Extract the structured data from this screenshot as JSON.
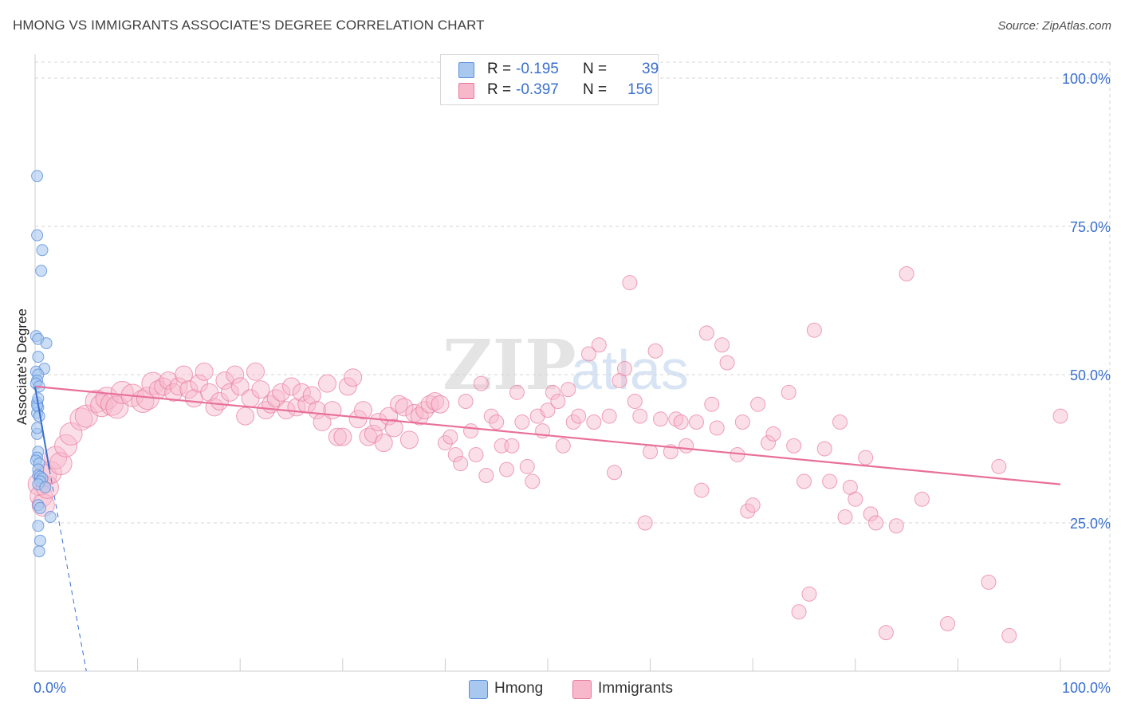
{
  "title": "HMONG VS IMMIGRANTS ASSOCIATE'S DEGREE CORRELATION CHART",
  "source": "Source: ZipAtlas.com",
  "watermark": {
    "zip": "ZIP",
    "atlas": "atlas"
  },
  "legend": {
    "r_label": "R =",
    "n_label": "N =",
    "hmong": {
      "r": "-0.195",
      "n": "39"
    },
    "immigrants": {
      "r": "-0.397",
      "n": "156"
    }
  },
  "bottom_legend": {
    "hmong": "Hmong",
    "immigrants": "Immigrants"
  },
  "colors": {
    "hmong_fill": "#a8c8f0",
    "hmong_stroke": "#5b8fd8",
    "hmong_line": "#3a6fce",
    "imm_fill": "#f7b8cb",
    "imm_stroke": "#e8799c",
    "imm_line": "#e8709a",
    "axis_label": "#3a6fce",
    "grid": "#d5d5d5"
  },
  "chart_data": {
    "type": "scatter",
    "title": "HMONG VS IMMIGRANTS ASSOCIATE'S DEGREE CORRELATION CHART",
    "xlabel": "",
    "ylabel": "Associate's Degree",
    "xlim": [
      0,
      100
    ],
    "ylim": [
      0,
      100
    ],
    "x_tick_labels": [
      "0.0%",
      "100.0%"
    ],
    "y_tick_labels": [
      {
        "value": 25,
        "label": "25.0%"
      },
      {
        "value": 50,
        "label": "50.0%"
      },
      {
        "value": 75,
        "label": "75.0%"
      },
      {
        "value": 100,
        "label": "100.0%"
      }
    ],
    "grid": true,
    "series": [
      {
        "name": "Hmong",
        "points": [
          [
            0.2,
            83.5
          ],
          [
            0.2,
            73.5
          ],
          [
            0.7,
            71
          ],
          [
            0.6,
            67.5
          ],
          [
            0.1,
            56.5
          ],
          [
            0.3,
            56
          ],
          [
            1.1,
            55.3
          ],
          [
            0.3,
            53
          ],
          [
            0.9,
            51
          ],
          [
            0.1,
            50.5
          ],
          [
            0.3,
            50
          ],
          [
            0.2,
            49
          ],
          [
            0.1,
            48.5
          ],
          [
            0.4,
            48
          ],
          [
            0.2,
            45.3
          ],
          [
            0.3,
            44.5
          ],
          [
            0.2,
            43.5
          ],
          [
            0.4,
            43
          ],
          [
            0.2,
            40
          ],
          [
            0.3,
            37
          ],
          [
            0.2,
            36
          ],
          [
            0.1,
            35.5
          ],
          [
            0.4,
            35
          ],
          [
            0.3,
            34
          ],
          [
            0.3,
            33
          ],
          [
            0.5,
            32.8
          ],
          [
            0.7,
            32.5
          ],
          [
            0.5,
            32
          ],
          [
            0.3,
            31.5
          ],
          [
            1.0,
            31
          ],
          [
            0.3,
            28
          ],
          [
            0.5,
            27.5
          ],
          [
            1.5,
            26
          ],
          [
            0.3,
            24.5
          ],
          [
            0.5,
            22
          ],
          [
            0.4,
            20.2
          ],
          [
            0.2,
            44.8
          ],
          [
            0.3,
            46
          ],
          [
            0.2,
            41
          ]
        ]
      },
      {
        "name": "Immigrants",
        "points": [
          [
            0.4,
            31.5
          ],
          [
            0.6,
            29.5
          ],
          [
            0.8,
            28
          ],
          [
            1.0,
            33
          ],
          [
            1.2,
            31
          ],
          [
            1.5,
            33.5
          ],
          [
            2.0,
            36
          ],
          [
            2.5,
            35
          ],
          [
            3.0,
            38
          ],
          [
            3.5,
            40
          ],
          [
            4.5,
            42.5
          ],
          [
            5.0,
            43
          ],
          [
            6.0,
            45.5
          ],
          [
            6.5,
            44.8
          ],
          [
            7.0,
            46
          ],
          [
            7.5,
            45
          ],
          [
            8.0,
            44.5
          ],
          [
            8.5,
            47
          ],
          [
            9.5,
            46.5
          ],
          [
            10.5,
            45.5
          ],
          [
            11,
            46
          ],
          [
            11.5,
            48.5
          ],
          [
            12.0,
            47.5
          ],
          [
            12.5,
            48
          ],
          [
            13.0,
            49
          ],
          [
            13.5,
            47
          ],
          [
            14.0,
            48
          ],
          [
            14.5,
            50
          ],
          [
            15.0,
            47.5
          ],
          [
            15.5,
            46
          ],
          [
            16.0,
            48.5
          ],
          [
            16.5,
            50.5
          ],
          [
            17.0,
            47
          ],
          [
            17.5,
            44.5
          ],
          [
            18.0,
            45.5
          ],
          [
            18.5,
            49
          ],
          [
            19.0,
            47
          ],
          [
            19.5,
            50
          ],
          [
            20.0,
            48
          ],
          [
            20.5,
            43
          ],
          [
            21.0,
            46
          ],
          [
            21.5,
            50.5
          ],
          [
            22.0,
            47.5
          ],
          [
            22.5,
            44
          ],
          [
            23.0,
            45
          ],
          [
            23.5,
            46
          ],
          [
            24.0,
            47
          ],
          [
            24.5,
            44
          ],
          [
            25.0,
            48
          ],
          [
            25.5,
            44.5
          ],
          [
            26.0,
            47
          ],
          [
            26.5,
            45
          ],
          [
            27.0,
            46.5
          ],
          [
            27.5,
            44
          ],
          [
            28.0,
            42
          ],
          [
            28.5,
            48.5
          ],
          [
            29.0,
            44
          ],
          [
            29.5,
            39.5
          ],
          [
            30.0,
            39.5
          ],
          [
            30.5,
            48
          ],
          [
            31.0,
            49.5
          ],
          [
            31.5,
            42.5
          ],
          [
            32.0,
            44
          ],
          [
            32.5,
            39.5
          ],
          [
            33.0,
            40
          ],
          [
            33.5,
            42
          ],
          [
            34.0,
            38.5
          ],
          [
            34.5,
            43
          ],
          [
            35.0,
            41
          ],
          [
            35.5,
            45
          ],
          [
            36.0,
            44.5
          ],
          [
            36.5,
            39
          ],
          [
            37.0,
            43.5
          ],
          [
            37.5,
            43
          ],
          [
            38.0,
            44
          ],
          [
            38.5,
            45
          ],
          [
            39.0,
            45.5
          ],
          [
            39.5,
            45
          ],
          [
            40.0,
            38.5
          ],
          [
            40.5,
            39.5
          ],
          [
            41.0,
            36.5
          ],
          [
            41.5,
            35
          ],
          [
            42.0,
            45.5
          ],
          [
            42.5,
            40.5
          ],
          [
            43.0,
            36.5
          ],
          [
            43.5,
            48.5
          ],
          [
            44.0,
            33
          ],
          [
            44.5,
            43
          ],
          [
            45.0,
            42
          ],
          [
            45.5,
            38
          ],
          [
            46.0,
            34
          ],
          [
            46.5,
            38
          ],
          [
            47.0,
            47
          ],
          [
            47.5,
            42
          ],
          [
            48.0,
            34.5
          ],
          [
            48.5,
            32
          ],
          [
            49.0,
            43
          ],
          [
            49.5,
            40.5
          ],
          [
            50.0,
            44
          ],
          [
            50.5,
            47
          ],
          [
            51.0,
            45.5
          ],
          [
            51.5,
            38
          ],
          [
            52.0,
            47.5
          ],
          [
            52.5,
            42
          ],
          [
            53.0,
            43
          ],
          [
            54.0,
            53.5
          ],
          [
            54.5,
            42
          ],
          [
            55.0,
            55
          ],
          [
            56.0,
            43
          ],
          [
            56.5,
            33.5
          ],
          [
            57.0,
            49
          ],
          [
            57.5,
            51
          ],
          [
            58.0,
            65.5
          ],
          [
            58.5,
            45.5
          ],
          [
            59.0,
            43
          ],
          [
            59.5,
            25
          ],
          [
            60.0,
            37
          ],
          [
            60.5,
            54
          ],
          [
            61.0,
            42.5
          ],
          [
            62.0,
            37
          ],
          [
            62.5,
            42.5
          ],
          [
            63.0,
            42
          ],
          [
            63.5,
            38
          ],
          [
            64.5,
            42
          ],
          [
            65.0,
            30.5
          ],
          [
            65.5,
            57
          ],
          [
            66.0,
            45
          ],
          [
            66.5,
            41
          ],
          [
            67.0,
            55
          ],
          [
            67.5,
            52
          ],
          [
            68.5,
            36.5
          ],
          [
            69.0,
            42
          ],
          [
            69.5,
            27
          ],
          [
            70.0,
            28
          ],
          [
            70.5,
            45
          ],
          [
            71.5,
            38.5
          ],
          [
            72.0,
            40
          ],
          [
            73.5,
            47
          ],
          [
            74.0,
            38
          ],
          [
            74.5,
            10
          ],
          [
            75.0,
            32
          ],
          [
            75.5,
            13
          ],
          [
            76.0,
            57.5
          ],
          [
            77.0,
            37.5
          ],
          [
            77.5,
            32
          ],
          [
            78.5,
            42
          ],
          [
            79.0,
            26
          ],
          [
            79.5,
            31
          ],
          [
            80.0,
            29
          ],
          [
            81.0,
            36
          ],
          [
            81.5,
            26.5
          ],
          [
            82.0,
            25
          ],
          [
            83.0,
            6.5
          ],
          [
            84.0,
            24.5
          ],
          [
            85.0,
            67
          ],
          [
            86.5,
            29
          ],
          [
            89.0,
            8
          ],
          [
            93.0,
            15
          ],
          [
            94.0,
            34.5
          ],
          [
            95.0,
            6
          ],
          [
            100,
            43
          ]
        ]
      }
    ],
    "trend_lines": [
      {
        "series": "Hmong",
        "from": [
          0,
          48
        ],
        "to": [
          1.4,
          34
        ],
        "dashed_to": [
          5,
          0
        ]
      },
      {
        "series": "Immigrants",
        "from": [
          0,
          48
        ],
        "to": [
          100,
          31.5
        ]
      }
    ],
    "legend": {
      "position": "top-center"
    }
  }
}
